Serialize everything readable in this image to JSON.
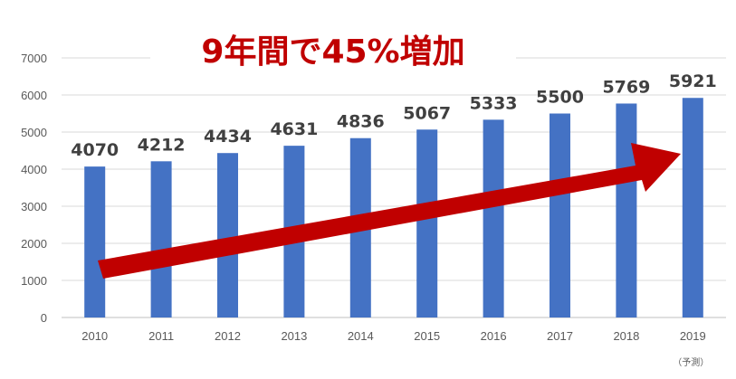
{
  "chart_data": {
    "type": "bar",
    "title": "9年間で45%増加",
    "categories": [
      "2010",
      "2011",
      "2012",
      "2013",
      "2014",
      "2015",
      "2016",
      "2017",
      "2018",
      "2019"
    ],
    "values": [
      4070,
      4212,
      4434,
      4631,
      4836,
      5067,
      5333,
      5500,
      5769,
      5921
    ],
    "category_notes": {
      "2019": "（予測）"
    },
    "ylim": [
      0,
      7000
    ],
    "yticks": [
      0,
      1000,
      2000,
      3000,
      4000,
      5000,
      6000,
      7000
    ],
    "grid": true,
    "legend": "none",
    "bar_color": "#4472c4",
    "arrow_color": "#c00000",
    "title_color": "#c00000"
  }
}
